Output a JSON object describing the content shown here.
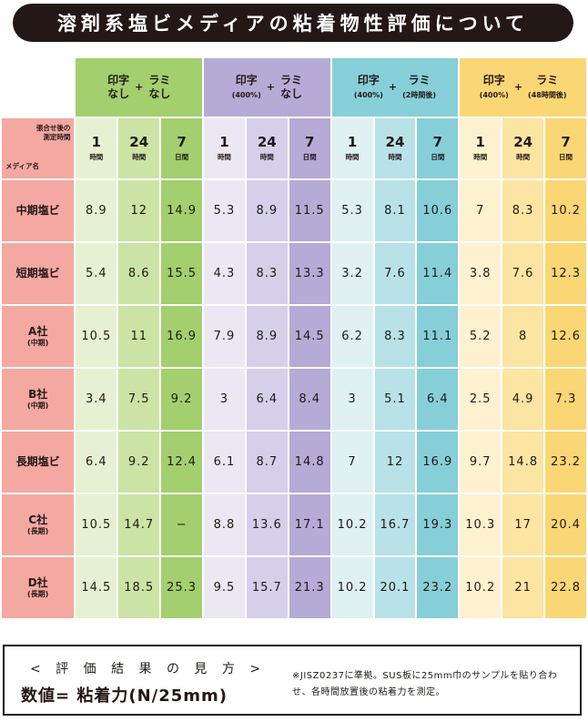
{
  "title": "溶剤系塩ビメディアの粘着物性評価について",
  "corner": {
    "line1": "張合せ後の",
    "line2": "測定時間",
    "media_label": "メディア名"
  },
  "groups": [
    {
      "a_main": "印字",
      "a_sub": "なし",
      "plus": "+",
      "b_main": "ラミ",
      "b_sub": "なし",
      "color_header": "#a3cf6e",
      "colors": [
        "#e6f1d3",
        "#cbe3a4",
        "#a3cf6e"
      ]
    },
    {
      "a_main": "印字",
      "a_sub": "(400%)",
      "plus": "+",
      "b_main": "ラミ",
      "b_sub": "なし",
      "color_header": "#b6aad6",
      "colors": [
        "#ebe7f3",
        "#d6cfea",
        "#b6aad6"
      ]
    },
    {
      "a_main": "印字",
      "a_sub": "(400%)",
      "plus": "+",
      "b_main": "ラミ",
      "b_sub": "(2時間後)",
      "color_header": "#86cfd8",
      "colors": [
        "#dff1f3",
        "#b8e2e8",
        "#86cfd8"
      ]
    },
    {
      "a_main": "印字",
      "a_sub": "(400%)",
      "plus": "+",
      "b_main": "ラミ",
      "b_sub": "(48時間後)",
      "color_header": "#fbd675",
      "colors": [
        "#fdf1d0",
        "#fce4a2",
        "#fbd675"
      ]
    }
  ],
  "times": [
    {
      "num": "1",
      "unit": "時間"
    },
    {
      "num": "24",
      "unit": "時間"
    },
    {
      "num": "7",
      "unit": "日間"
    }
  ],
  "chart_data": {
    "type": "table",
    "title": "溶剤系塩ビメディアの粘着物性評価について",
    "rows": [
      {
        "name": "中期塩ビ",
        "sub": "",
        "values": [
          "8.9",
          "12",
          "14.9",
          "5.3",
          "8.9",
          "11.5",
          "5.3",
          "8.1",
          "10.6",
          "7",
          "8.3",
          "10.2"
        ]
      },
      {
        "name": "短期塩ビ",
        "sub": "",
        "values": [
          "5.4",
          "8.6",
          "15.5",
          "4.3",
          "8.3",
          "13.3",
          "3.2",
          "7.6",
          "11.4",
          "3.8",
          "7.6",
          "12.3"
        ]
      },
      {
        "name": "A社",
        "sub": "(中期)",
        "values": [
          "10.5",
          "11",
          "16.9",
          "7.9",
          "8.9",
          "14.5",
          "6.2",
          "8.3",
          "11.1",
          "5.2",
          "8",
          "12.6"
        ]
      },
      {
        "name": "B社",
        "sub": "(中期)",
        "values": [
          "3.4",
          "7.5",
          "9.2",
          "3",
          "6.4",
          "8.4",
          "3",
          "5.1",
          "6.4",
          "2.5",
          "4.9",
          "7.3"
        ]
      },
      {
        "name": "長期塩ビ",
        "sub": "",
        "values": [
          "6.4",
          "9.2",
          "12.4",
          "6.1",
          "8.7",
          "14.8",
          "7",
          "12",
          "16.9",
          "9.7",
          "14.8",
          "23.2"
        ]
      },
      {
        "name": "C社",
        "sub": "(長期)",
        "values": [
          "10.5",
          "14.7",
          "−",
          "8.8",
          "13.6",
          "17.1",
          "10.2",
          "16.7",
          "19.3",
          "10.3",
          "17",
          "20.4"
        ]
      },
      {
        "name": "D社",
        "sub": "(長期)",
        "values": [
          "14.5",
          "18.5",
          "25.3",
          "9.5",
          "15.7",
          "21.3",
          "10.2",
          "20.1",
          "23.2",
          "10.2",
          "21",
          "22.8"
        ]
      }
    ]
  },
  "note": {
    "heading": "< 評 価 結 果 の 見 方 >",
    "main": "数値= 粘着力(N/25mm)",
    "text": "※JISZ0237に準拠。SUS板に25mm巾のサンプルを貼り合わせ、各時間放置後の粘着力を測定。"
  }
}
